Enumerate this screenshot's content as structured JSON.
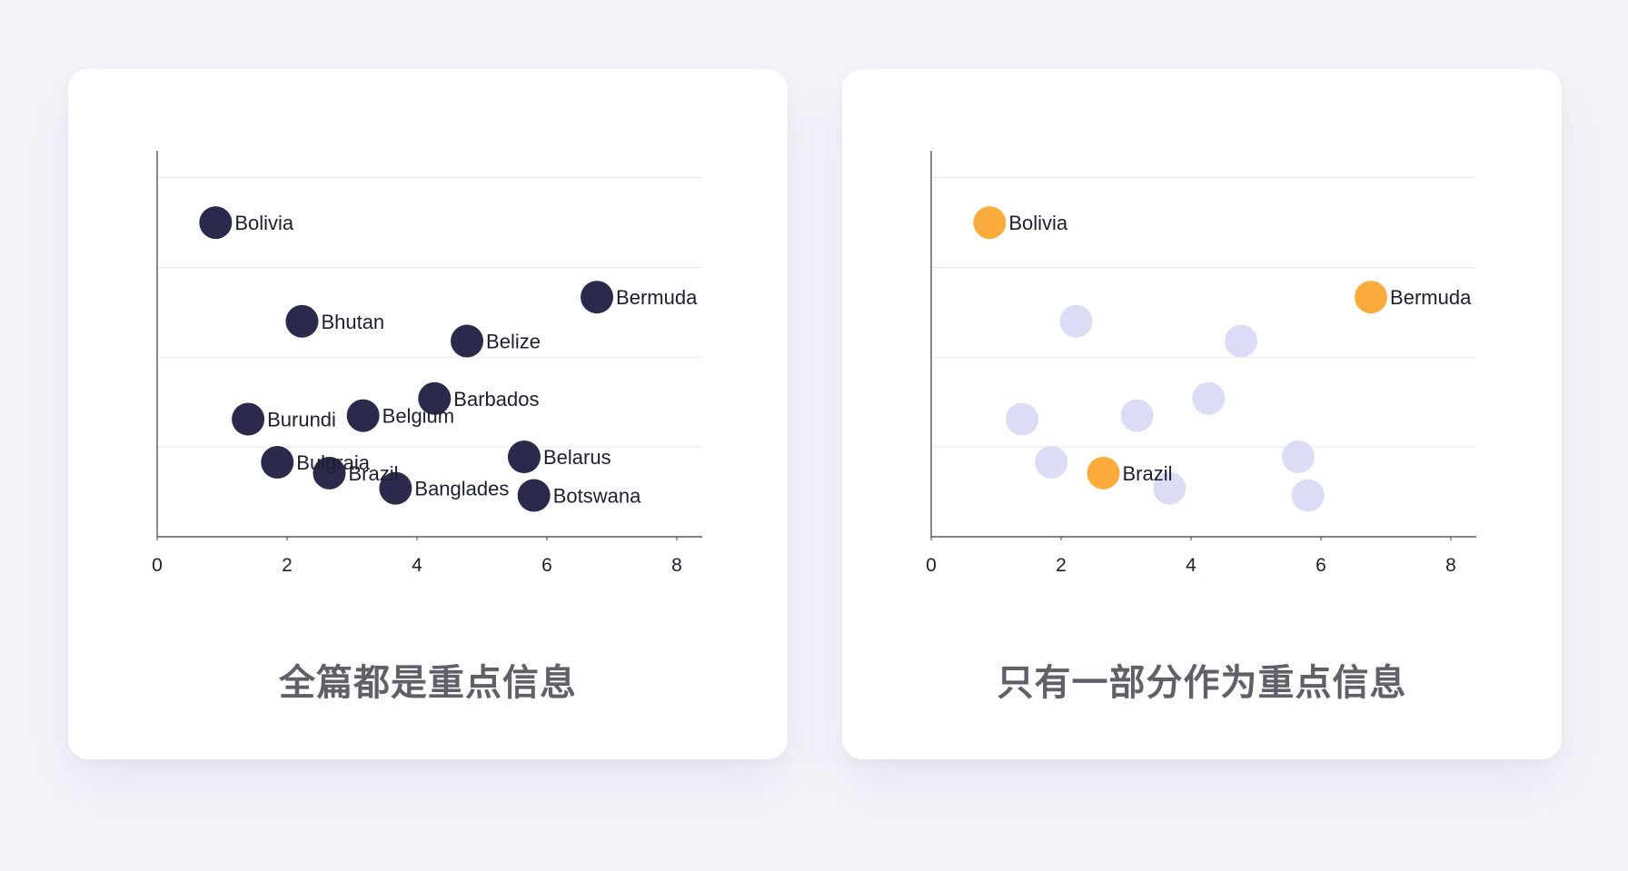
{
  "chart_data": [
    {
      "type": "scatter",
      "caption": "全篇都是重点信息",
      "xlim": [
        0,
        8
      ],
      "ylim": [
        0,
        4.3
      ],
      "x_ticks": [
        "0",
        "2",
        "4",
        "6",
        "8"
      ],
      "y_grid": [
        1,
        2,
        3,
        4
      ],
      "grid": true,
      "colors": {
        "point": "#2b2a4c"
      },
      "points": [
        {
          "label": "Bolivia",
          "x": 0.9,
          "y": 3.5,
          "highlight": true
        },
        {
          "label": "Bermuda",
          "x": 6.77,
          "y": 2.67,
          "highlight": true
        },
        {
          "label": "Bhutan",
          "x": 2.23,
          "y": 2.4,
          "highlight": true
        },
        {
          "label": "Belize",
          "x": 4.77,
          "y": 2.18,
          "highlight": true
        },
        {
          "label": "Barbados",
          "x": 4.27,
          "y": 1.54,
          "highlight": true
        },
        {
          "label": "Burundi",
          "x": 1.4,
          "y": 1.31,
          "highlight": true
        },
        {
          "label": "Belgium",
          "x": 3.17,
          "y": 1.35,
          "highlight": true
        },
        {
          "label": "Belarus",
          "x": 5.65,
          "y": 0.89,
          "highlight": true
        },
        {
          "label": "Bulgraia",
          "x": 1.85,
          "y": 0.83,
          "highlight": true
        },
        {
          "label": "Brazil",
          "x": 2.65,
          "y": 0.71,
          "highlight": true
        },
        {
          "label": "Banglades",
          "x": 3.67,
          "y": 0.54,
          "highlight": true
        },
        {
          "label": "Botswana",
          "x": 5.8,
          "y": 0.46,
          "highlight": true
        }
      ]
    },
    {
      "type": "scatter",
      "caption": "只有一部分作为重点信息",
      "xlim": [
        0,
        8
      ],
      "ylim": [
        0,
        4.3
      ],
      "x_ticks": [
        "0",
        "2",
        "4",
        "6",
        "8"
      ],
      "y_grid": [
        1,
        2,
        3,
        4
      ],
      "grid": true,
      "colors": {
        "highlight": "#fbac3c",
        "muted": "#dcdcf6"
      },
      "points": [
        {
          "label": "Bolivia",
          "x": 0.9,
          "y": 3.5,
          "highlight": true
        },
        {
          "label": "Bermuda",
          "x": 6.77,
          "y": 2.67,
          "highlight": true
        },
        {
          "label": "Brazil",
          "x": 2.65,
          "y": 0.71,
          "highlight": true
        },
        {
          "x": 2.23,
          "y": 2.4,
          "highlight": false
        },
        {
          "x": 4.77,
          "y": 2.18,
          "highlight": false
        },
        {
          "x": 4.27,
          "y": 1.54,
          "highlight": false
        },
        {
          "x": 1.4,
          "y": 1.31,
          "highlight": false
        },
        {
          "x": 3.17,
          "y": 1.35,
          "highlight": false
        },
        {
          "x": 5.65,
          "y": 0.89,
          "highlight": false
        },
        {
          "x": 1.85,
          "y": 0.83,
          "highlight": false
        },
        {
          "x": 3.67,
          "y": 0.54,
          "highlight": false
        },
        {
          "x": 5.8,
          "y": 0.46,
          "highlight": false
        }
      ]
    }
  ]
}
